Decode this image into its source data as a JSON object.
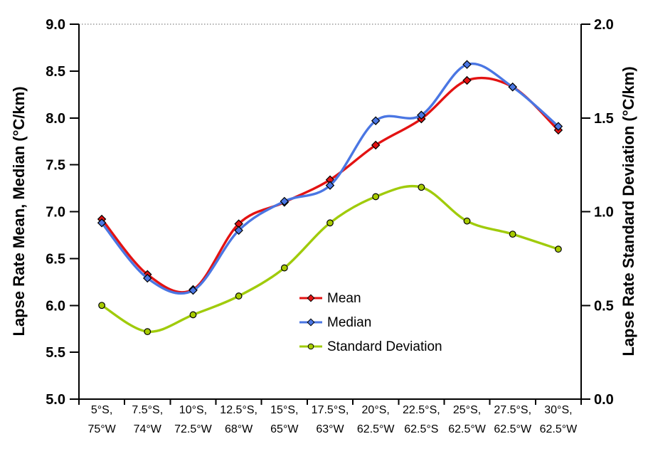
{
  "chart_data": {
    "type": "line",
    "x_categories_line1": [
      "5°S,",
      "7.5°S,",
      "10°S,",
      "12.5°S,",
      "15°S,",
      "17.5°S,",
      "20°S,",
      "22.5°S,",
      "25°S,",
      "27.5°S,",
      "30°S,"
    ],
    "x_categories_line2": [
      "75°W",
      "74°W",
      "72.5°W",
      "68°W",
      "65°W",
      "63°W",
      "62.5°W",
      "62.5°S",
      "62.5°W",
      "62.5°W",
      "62.5°W"
    ],
    "left_axis": {
      "title": "Lapse Rate Mean, Median (°C/km)",
      "min": 5.0,
      "max": 9.0,
      "step": 0.5,
      "ticks": [
        "9.0",
        "8.5",
        "8.0",
        "7.5",
        "7.0",
        "6.5",
        "6.0",
        "5.5",
        "5.0"
      ]
    },
    "right_axis": {
      "title": "Lapse Rate Standard Deviation (°C/km)",
      "min": 0.0,
      "max": 2.0,
      "step": 0.5,
      "ticks": [
        "2.0",
        "1.5",
        "1.0",
        "0.5",
        "0.0"
      ]
    },
    "series": [
      {
        "name": "Mean",
        "axis": "left",
        "color": "#e31212",
        "marker": "diamond",
        "values": [
          6.92,
          6.33,
          6.17,
          6.87,
          7.1,
          7.34,
          7.71,
          7.99,
          8.4,
          8.33,
          7.87
        ]
      },
      {
        "name": "Median",
        "axis": "left",
        "color": "#4a76e3",
        "marker": "diamond",
        "values": [
          6.88,
          6.29,
          6.16,
          6.8,
          7.11,
          7.28,
          7.97,
          8.03,
          8.57,
          8.33,
          7.91
        ]
      },
      {
        "name": "Standard Deviation",
        "axis": "right",
        "color": "#a0cb0b",
        "marker": "circle",
        "values": [
          0.5,
          0.36,
          0.45,
          0.55,
          0.7,
          0.94,
          1.08,
          1.13,
          0.95,
          0.88,
          0.8
        ]
      }
    ],
    "legend_position": "inside-lower-right-of-center",
    "grid": "dotted gridline at top value only",
    "plot_border": "left, bottom and right solid black axes"
  }
}
